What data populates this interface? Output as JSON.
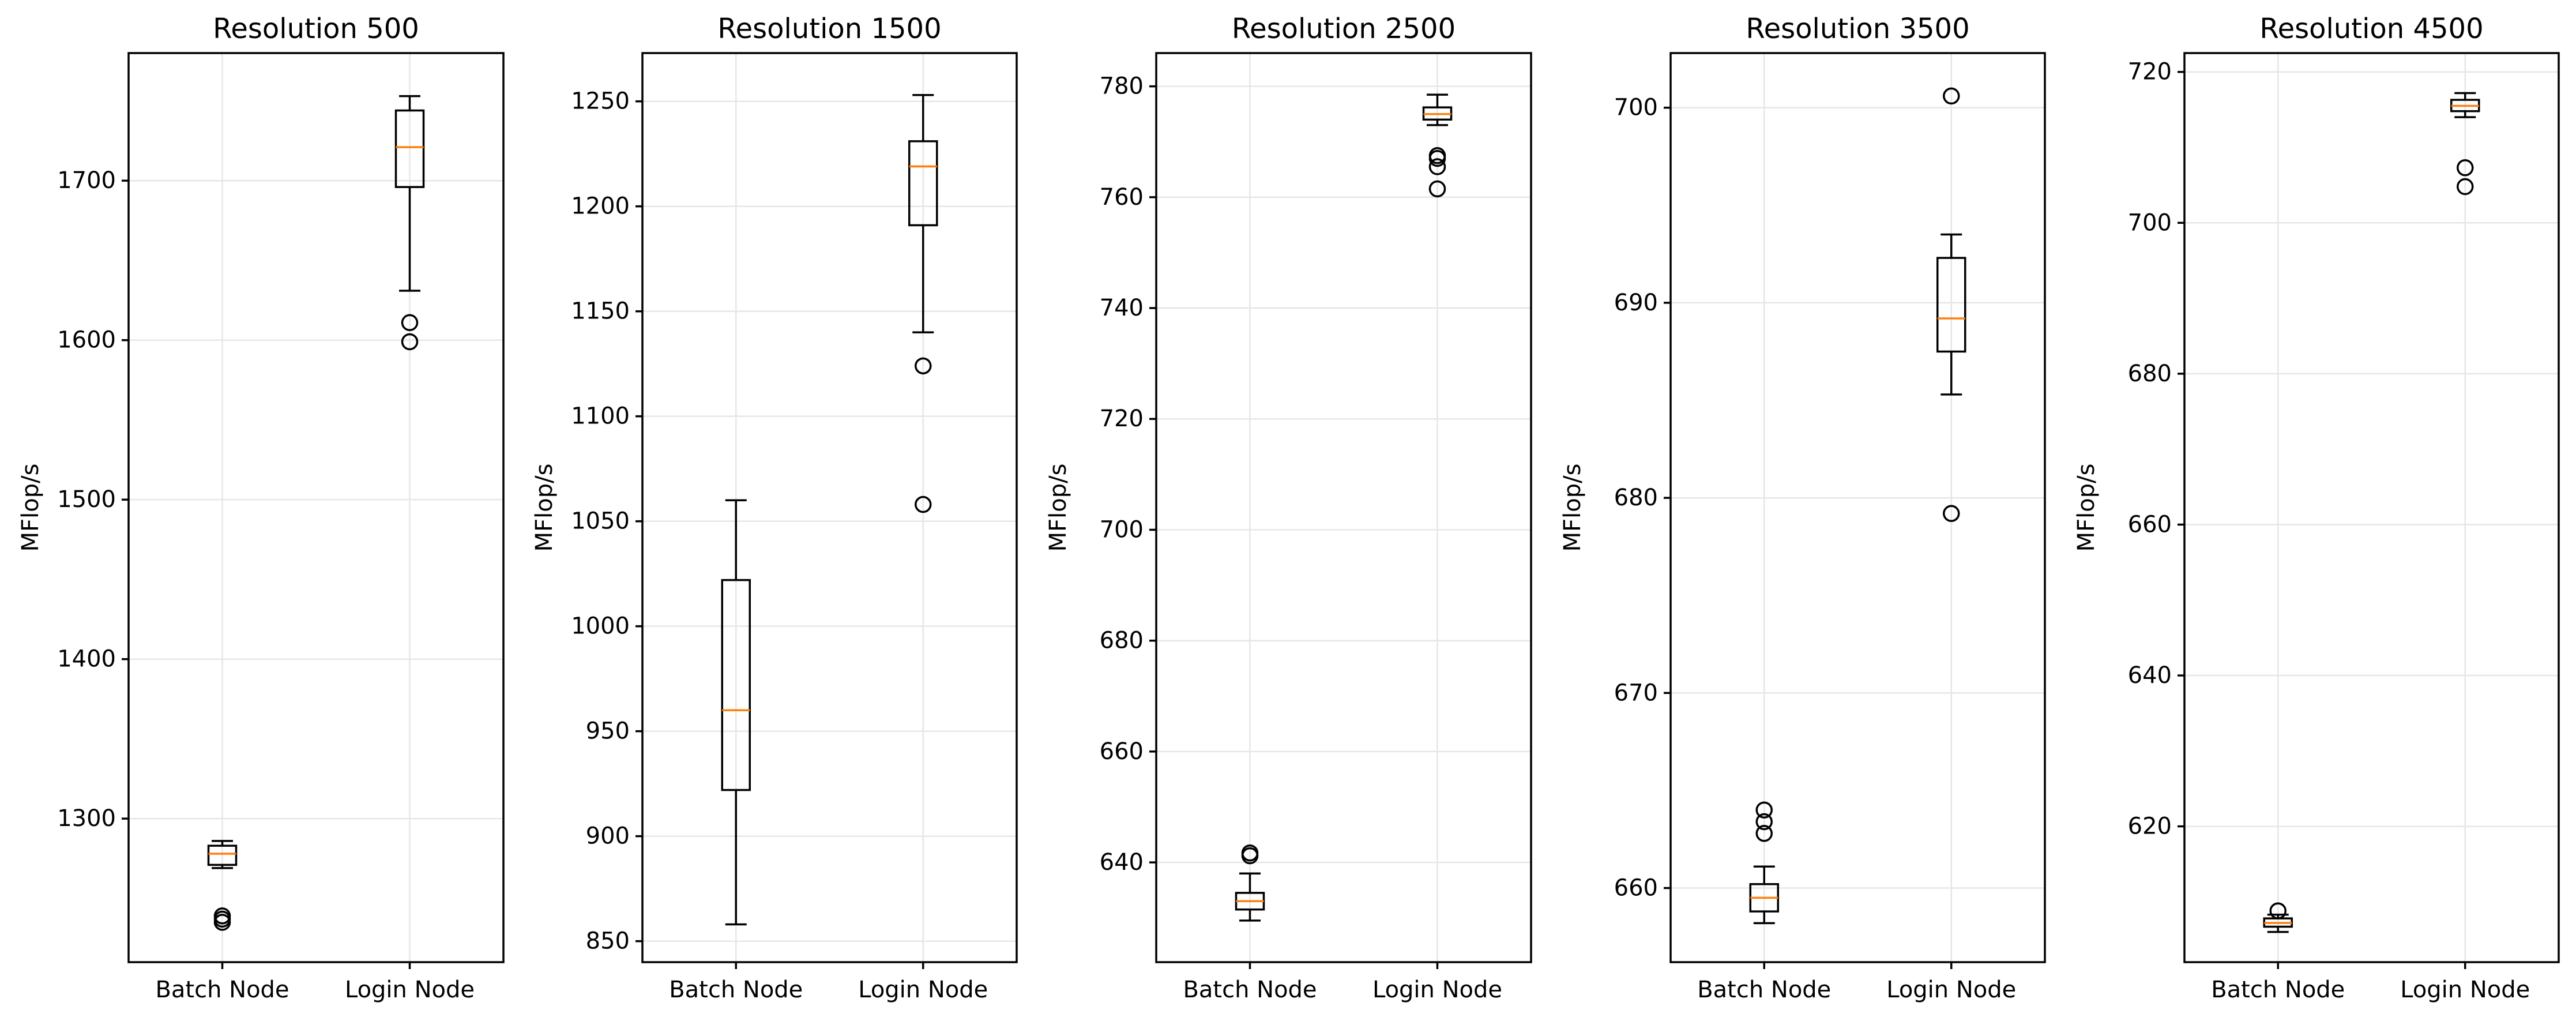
{
  "chart_data": [
    {
      "type": "boxplot",
      "title": "Resolution 500",
      "ylabel": "MFlop/s",
      "categories": [
        "Batch Node",
        "Login Node"
      ],
      "ylim": [
        1210,
        1780
      ],
      "yticks": [
        1300,
        1400,
        1500,
        1600,
        1700
      ],
      "grid": true,
      "boxes": [
        {
          "category": "Batch Node",
          "whisker_low": 1269,
          "q1": 1271,
          "median": 1278,
          "q3": 1283,
          "whisker_high": 1286,
          "outliers": [
            1235,
            1237,
            1239
          ]
        },
        {
          "category": "Login Node",
          "whisker_low": 1631,
          "q1": 1696,
          "median": 1721,
          "q3": 1744,
          "whisker_high": 1753,
          "outliers": [
            1599,
            1611
          ]
        }
      ]
    },
    {
      "type": "boxplot",
      "title": "Resolution 1500",
      "ylabel": "MFlop/s",
      "categories": [
        "Batch Node",
        "Login Node"
      ],
      "ylim": [
        840,
        1273
      ],
      "yticks": [
        850,
        900,
        950,
        1000,
        1050,
        1100,
        1150,
        1200,
        1250
      ],
      "grid": true,
      "boxes": [
        {
          "category": "Batch Node",
          "whisker_low": 858,
          "q1": 922,
          "median": 960,
          "q3": 1022,
          "whisker_high": 1060,
          "outliers": []
        },
        {
          "category": "Login Node",
          "whisker_low": 1140,
          "q1": 1191,
          "median": 1219,
          "q3": 1231,
          "whisker_high": 1253,
          "outliers": [
            1058,
            1124
          ]
        }
      ]
    },
    {
      "type": "boxplot",
      "title": "Resolution 2500",
      "ylabel": "MFlop/s",
      "categories": [
        "Batch Node",
        "Login Node"
      ],
      "ylim": [
        622,
        786
      ],
      "yticks": [
        640,
        660,
        680,
        700,
        720,
        740,
        760,
        780
      ],
      "grid": true,
      "boxes": [
        {
          "category": "Batch Node",
          "whisker_low": 629.5,
          "q1": 631.5,
          "median": 633,
          "q3": 634.5,
          "whisker_high": 638,
          "outliers": [
            641.2,
            641.7
          ]
        },
        {
          "category": "Login Node",
          "whisker_low": 773,
          "q1": 774,
          "median": 775,
          "q3": 776.2,
          "whisker_high": 778.5,
          "outliers": [
            761.5,
            765.5,
            767,
            767.5
          ]
        }
      ]
    },
    {
      "type": "boxplot",
      "title": "Resolution 3500",
      "ylabel": "MFlop/s",
      "categories": [
        "Batch Node",
        "Login Node"
      ],
      "ylim": [
        656.2,
        702.8
      ],
      "yticks": [
        660,
        670,
        680,
        690,
        700
      ],
      "grid": true,
      "boxes": [
        {
          "category": "Batch Node",
          "whisker_low": 658.2,
          "q1": 658.8,
          "median": 659.5,
          "q3": 660.2,
          "whisker_high": 661.1,
          "outliers": [
            662.8,
            663.4,
            664
          ]
        },
        {
          "category": "Login Node",
          "whisker_low": 685.3,
          "q1": 687.5,
          "median": 689.2,
          "q3": 692.3,
          "whisker_high": 693.5,
          "outliers": [
            679.2,
            700.6
          ]
        }
      ]
    },
    {
      "type": "boxplot",
      "title": "Resolution 4500",
      "ylabel": "MFlop/s",
      "categories": [
        "Batch Node",
        "Login Node"
      ],
      "ylim": [
        602,
        722.5
      ],
      "yticks": [
        620,
        640,
        660,
        680,
        700,
        720
      ],
      "grid": true,
      "boxes": [
        {
          "category": "Batch Node",
          "whisker_low": 606,
          "q1": 606.7,
          "median": 607.2,
          "q3": 607.8,
          "whisker_high": 608.3,
          "outliers": [
            608.8
          ]
        },
        {
          "category": "Login Node",
          "whisker_low": 714,
          "q1": 714.8,
          "median": 715.5,
          "q3": 716.3,
          "whisker_high": 717.2,
          "outliers": [
            704.8,
            707.3
          ]
        }
      ]
    }
  ],
  "colors": {
    "box": "#000000",
    "median": "#ff7f0e",
    "grid": "#e6e6e6",
    "background": "#ffffff"
  }
}
